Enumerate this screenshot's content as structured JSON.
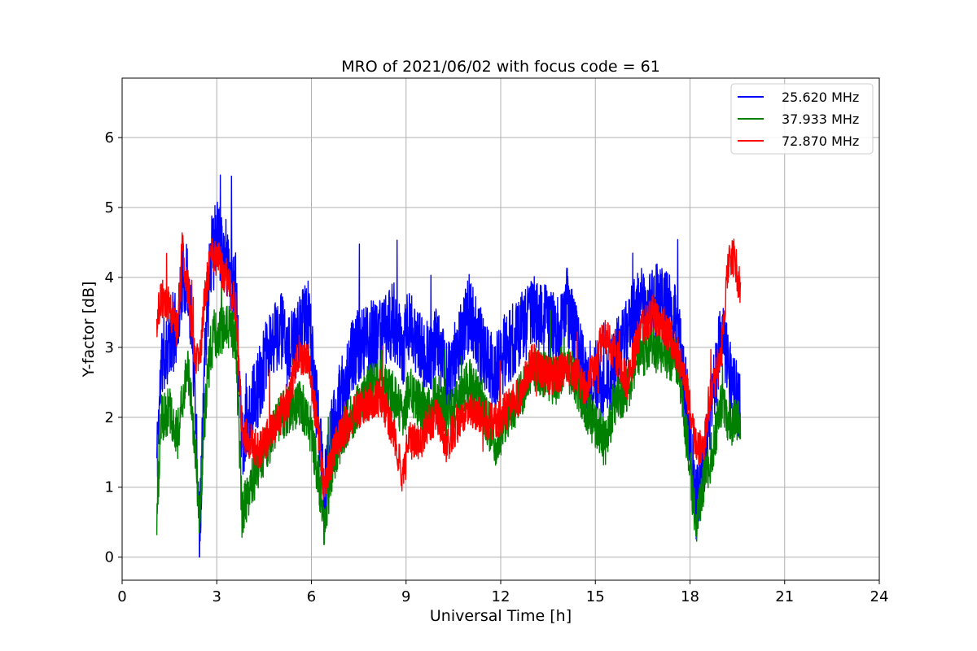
{
  "chart_data": {
    "type": "line",
    "title": "MRO of 2021/06/02 with focus code = 61",
    "xlabel": "Universal Time [h]",
    "ylabel": "Y-factor [dB]",
    "xlim": [
      0,
      24
    ],
    "ylim": [
      -0.33,
      6.85
    ],
    "xticks": [
      0,
      3,
      6,
      9,
      12,
      15,
      18,
      21,
      24
    ],
    "yticks": [
      0,
      1,
      2,
      3,
      4,
      5,
      6
    ],
    "grid": true,
    "legend_position": "top-right",
    "x_range_of_data": [
      1.1,
      19.6
    ],
    "series": [
      {
        "name": "25.620 MHz",
        "color": "#0000ff",
        "points": [
          [
            1.1,
            1.4
          ],
          [
            1.25,
            2.8
          ],
          [
            1.5,
            3.1
          ],
          [
            1.75,
            3.3
          ],
          [
            1.9,
            4.0
          ],
          [
            2.1,
            3.9
          ],
          [
            2.3,
            2.6
          ],
          [
            2.45,
            0.3
          ],
          [
            2.6,
            2.6
          ],
          [
            2.8,
            4.3
          ],
          [
            3.0,
            4.6
          ],
          [
            3.3,
            4.3
          ],
          [
            3.6,
            3.8
          ],
          [
            3.8,
            1.5
          ],
          [
            3.95,
            1.9
          ],
          [
            4.3,
            2.4
          ],
          [
            4.6,
            2.9
          ],
          [
            5.0,
            3.3
          ],
          [
            5.3,
            2.9
          ],
          [
            5.6,
            3.2
          ],
          [
            5.9,
            3.5
          ],
          [
            6.2,
            2.0
          ],
          [
            6.4,
            0.9
          ],
          [
            6.7,
            1.9
          ],
          [
            7.0,
            2.4
          ],
          [
            7.4,
            3.0
          ],
          [
            7.8,
            3.1
          ],
          [
            8.2,
            3.2
          ],
          [
            8.6,
            3.4
          ],
          [
            8.9,
            2.9
          ],
          [
            9.1,
            3.4
          ],
          [
            9.4,
            3.0
          ],
          [
            9.7,
            2.8
          ],
          [
            10.0,
            3.1
          ],
          [
            10.3,
            2.5
          ],
          [
            10.6,
            2.9
          ],
          [
            11.0,
            3.5
          ],
          [
            11.4,
            3.0
          ],
          [
            11.8,
            2.6
          ],
          [
            12.2,
            3.0
          ],
          [
            12.6,
            3.2
          ],
          [
            13.0,
            3.5
          ],
          [
            13.4,
            3.4
          ],
          [
            13.8,
            3.2
          ],
          [
            14.1,
            3.6
          ],
          [
            14.4,
            3.1
          ],
          [
            14.7,
            2.5
          ],
          [
            15.0,
            2.6
          ],
          [
            15.3,
            2.3
          ],
          [
            15.6,
            2.8
          ],
          [
            16.0,
            3.2
          ],
          [
            16.4,
            3.6
          ],
          [
            16.8,
            3.7
          ],
          [
            17.2,
            3.6
          ],
          [
            17.6,
            3.3
          ],
          [
            17.9,
            2.2
          ],
          [
            18.2,
            0.7
          ],
          [
            18.4,
            1.2
          ],
          [
            18.7,
            2.2
          ],
          [
            19.0,
            3.2
          ],
          [
            19.3,
            2.5
          ],
          [
            19.6,
            2.1
          ]
        ]
      },
      {
        "name": "37.933 MHz",
        "color": "#008000",
        "points": [
          [
            1.1,
            0.6
          ],
          [
            1.25,
            2.0
          ],
          [
            1.5,
            2.1
          ],
          [
            1.75,
            1.7
          ],
          [
            1.9,
            2.3
          ],
          [
            2.1,
            2.7
          ],
          [
            2.3,
            1.7
          ],
          [
            2.45,
            0.5
          ],
          [
            2.6,
            1.9
          ],
          [
            2.8,
            3.0
          ],
          [
            3.0,
            3.2
          ],
          [
            3.3,
            3.3
          ],
          [
            3.6,
            3.1
          ],
          [
            3.8,
            0.6
          ],
          [
            4.0,
            0.9
          ],
          [
            4.3,
            1.3
          ],
          [
            4.6,
            1.6
          ],
          [
            5.0,
            2.0
          ],
          [
            5.3,
            2.1
          ],
          [
            5.6,
            2.2
          ],
          [
            5.9,
            2.0
          ],
          [
            6.2,
            1.2
          ],
          [
            6.4,
            0.5
          ],
          [
            6.7,
            1.4
          ],
          [
            7.0,
            1.8
          ],
          [
            7.4,
            2.1
          ],
          [
            7.8,
            2.4
          ],
          [
            8.2,
            2.5
          ],
          [
            8.6,
            2.3
          ],
          [
            8.9,
            2.0
          ],
          [
            9.1,
            2.4
          ],
          [
            9.4,
            2.2
          ],
          [
            9.7,
            2.1
          ],
          [
            10.0,
            2.3
          ],
          [
            10.3,
            2.0
          ],
          [
            10.6,
            2.2
          ],
          [
            11.0,
            2.5
          ],
          [
            11.4,
            2.2
          ],
          [
            11.8,
            1.6
          ],
          [
            12.2,
            2.0
          ],
          [
            12.6,
            2.3
          ],
          [
            13.0,
            2.7
          ],
          [
            13.4,
            2.6
          ],
          [
            13.8,
            2.5
          ],
          [
            14.0,
            2.8
          ],
          [
            14.4,
            2.5
          ],
          [
            14.7,
            2.1
          ],
          [
            15.0,
            1.9
          ],
          [
            15.3,
            1.6
          ],
          [
            15.6,
            2.2
          ],
          [
            16.0,
            2.4
          ],
          [
            16.4,
            2.9
          ],
          [
            16.8,
            3.0
          ],
          [
            17.2,
            2.9
          ],
          [
            17.6,
            2.8
          ],
          [
            17.9,
            1.7
          ],
          [
            18.2,
            0.4
          ],
          [
            18.4,
            1.0
          ],
          [
            18.7,
            1.5
          ],
          [
            19.0,
            2.2
          ],
          [
            19.3,
            1.9
          ],
          [
            19.6,
            1.9
          ]
        ]
      },
      {
        "name": "72.870 MHz",
        "color": "#ff0000",
        "points": [
          [
            1.1,
            3.4
          ],
          [
            1.25,
            3.7
          ],
          [
            1.5,
            3.6
          ],
          [
            1.75,
            3.2
          ],
          [
            1.9,
            4.4
          ],
          [
            2.1,
            3.8
          ],
          [
            2.3,
            2.9
          ],
          [
            2.45,
            2.7
          ],
          [
            2.6,
            3.6
          ],
          [
            2.8,
            4.3
          ],
          [
            3.0,
            4.3
          ],
          [
            3.3,
            4.0
          ],
          [
            3.6,
            3.6
          ],
          [
            3.8,
            1.8
          ],
          [
            4.0,
            1.7
          ],
          [
            4.3,
            1.5
          ],
          [
            4.6,
            1.7
          ],
          [
            5.0,
            2.0
          ],
          [
            5.3,
            2.3
          ],
          [
            5.6,
            2.9
          ],
          [
            5.9,
            2.8
          ],
          [
            6.2,
            1.8
          ],
          [
            6.4,
            1.0
          ],
          [
            6.7,
            1.5
          ],
          [
            7.0,
            1.8
          ],
          [
            7.4,
            2.1
          ],
          [
            7.8,
            2.2
          ],
          [
            8.2,
            2.3
          ],
          [
            8.6,
            1.8
          ],
          [
            8.9,
            1.1
          ],
          [
            9.1,
            1.7
          ],
          [
            9.4,
            1.6
          ],
          [
            9.7,
            1.9
          ],
          [
            10.0,
            2.0
          ],
          [
            10.3,
            1.6
          ],
          [
            10.6,
            1.9
          ],
          [
            11.0,
            2.1
          ],
          [
            11.4,
            2.0
          ],
          [
            11.8,
            1.9
          ],
          [
            12.2,
            2.1
          ],
          [
            12.6,
            2.3
          ],
          [
            13.0,
            2.8
          ],
          [
            13.4,
            2.6
          ],
          [
            13.8,
            2.6
          ],
          [
            14.1,
            2.7
          ],
          [
            14.4,
            2.6
          ],
          [
            14.7,
            2.4
          ],
          [
            15.0,
            2.8
          ],
          [
            15.3,
            3.2
          ],
          [
            15.6,
            2.9
          ],
          [
            16.0,
            2.5
          ],
          [
            16.4,
            3.2
          ],
          [
            16.8,
            3.5
          ],
          [
            17.2,
            3.3
          ],
          [
            17.6,
            2.9
          ],
          [
            17.9,
            2.4
          ],
          [
            18.2,
            1.6
          ],
          [
            18.4,
            1.5
          ],
          [
            18.7,
            2.4
          ],
          [
            19.0,
            2.9
          ],
          [
            19.2,
            4.2
          ],
          [
            19.4,
            4.3
          ],
          [
            19.6,
            3.8
          ]
        ]
      }
    ]
  }
}
